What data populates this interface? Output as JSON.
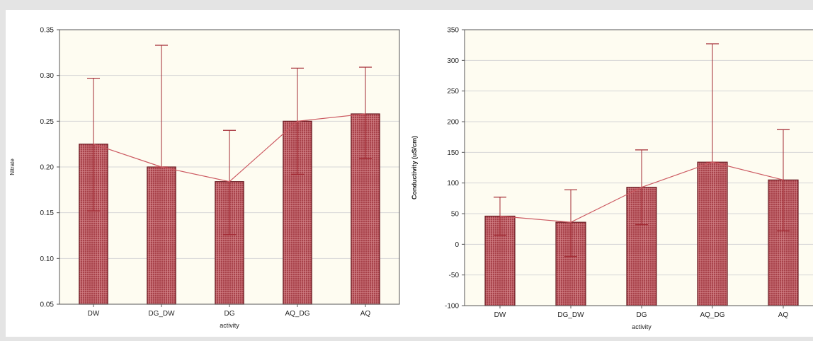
{
  "colors": {
    "bar_fill": "#a8424a",
    "bar_stroke": "#6a1a22",
    "line": "#cc5a62",
    "error_bar": "#a32a33",
    "plot_bg": "#fefcf1"
  },
  "chart_data": [
    {
      "type": "bar",
      "categories": [
        "DW",
        "DG_DW",
        "DG",
        "AQ_DG",
        "AQ"
      ],
      "values": [
        0.225,
        0.2,
        0.184,
        0.25,
        0.258
      ],
      "error_low": [
        0.152,
        0.2,
        0.126,
        0.192,
        0.209
      ],
      "error_high": [
        0.297,
        0.333,
        0.24,
        0.308,
        0.309
      ],
      "xlabel": "activity",
      "ylabel": "Nitrate",
      "ylim": [
        0.05,
        0.35
      ],
      "yticks": [
        "0.35",
        "0.30",
        "0.25",
        "0.20",
        "0.15",
        "0.10",
        "0.05"
      ],
      "grid": true
    },
    {
      "type": "bar",
      "categories": [
        "DW",
        "DG_DW",
        "DG",
        "AQ_DG",
        "AQ"
      ],
      "values": [
        46,
        36,
        93,
        134,
        105
      ],
      "error_low": [
        15,
        -20,
        32,
        134,
        22
      ],
      "error_high": [
        77,
        89,
        154,
        327,
        187
      ],
      "xlabel": "activity",
      "ylabel": "Conductivity (uS/cm)",
      "ylim": [
        -100,
        350
      ],
      "yticks": [
        "350",
        "300",
        "250",
        "200",
        "150",
        "100",
        "50",
        "0",
        "-50",
        "-100"
      ],
      "grid": true
    }
  ]
}
